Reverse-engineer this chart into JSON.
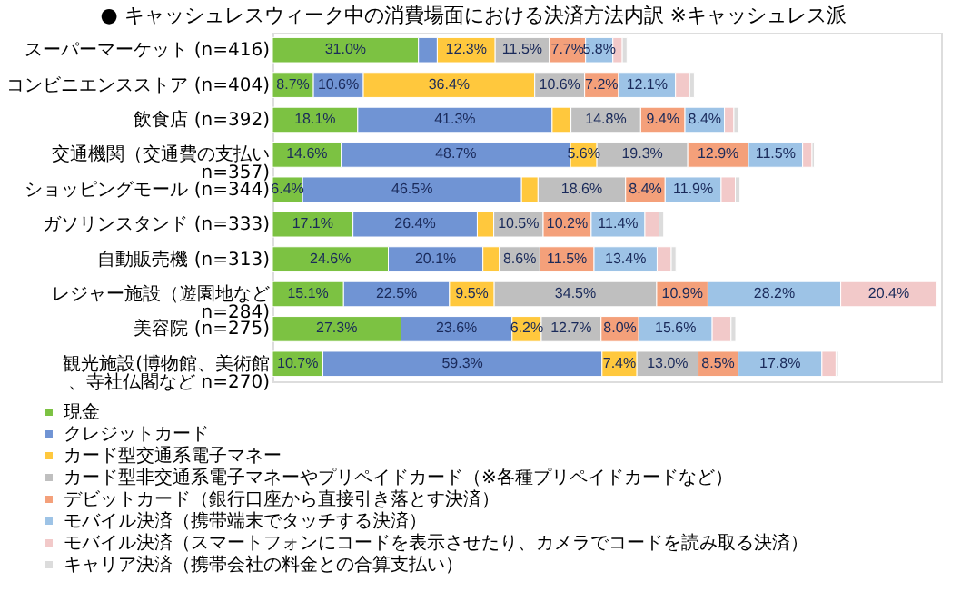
{
  "chart_data": {
    "type": "bar",
    "orientation": "horizontal",
    "stacked": true,
    "title": "● キャッシュレスウィーク中の消費場面における決済方法内訳 ※キャッシュレス派",
    "categories": [
      "スーパーマーケット (n=416)",
      "コンビニエンスストア (n=404)",
      "飲食店 (n=392)",
      "交通機関（交通費の支払い n=357)",
      "ショッピングモール (n=344)",
      "ガソリンスタンド (n=333)",
      "自動販売機 (n=313)",
      "レジャー施設（遊園地など n=284)",
      "美容院 (n=275)",
      "観光施設(博物館、美術館、寺社仏閣など n=270)"
    ],
    "xlim": [
      0,
      142
    ],
    "tick_labels": "y",
    "grid": false,
    "legend": "bottom",
    "series": [
      {
        "name": "現金",
        "color": "#7cc242",
        "values": [
          31.0,
          8.7,
          18.1,
          14.6,
          6.4,
          17.1,
          24.6,
          15.1,
          27.3,
          10.7
        ],
        "value_labels": [
          "31.0%",
          "8.7%",
          "18.1%",
          "14.6%",
          "6.4%",
          "17.1%",
          "24.6%",
          "15.1%",
          "27.3%",
          "10.7%"
        ]
      },
      {
        "name": "クレジットカード",
        "color": "#7094d4",
        "values": [
          4.0,
          10.6,
          41.3,
          48.7,
          46.5,
          26.4,
          20.1,
          22.5,
          23.6,
          59.3
        ],
        "value_labels": [
          null,
          "10.6%",
          "41.3%",
          "48.7%",
          "46.5%",
          "26.4%",
          "20.1%",
          "22.5%",
          "23.6%",
          "59.3%"
        ]
      },
      {
        "name": "カード型交通系電子マネー",
        "color": "#ffc83d",
        "values": [
          12.3,
          36.4,
          4.0,
          5.6,
          3.5,
          3.5,
          3.5,
          9.5,
          6.2,
          7.4
        ],
        "value_labels": [
          "12.3%",
          "36.4%",
          null,
          "5.6%",
          null,
          null,
          null,
          "9.5%",
          "6.2%",
          "7.4%"
        ]
      },
      {
        "name": "カード型非交通系電子マネーやプリペイドカード（※各種プリペイドカードなど）",
        "color": "#bfbfbf",
        "values": [
          11.5,
          10.6,
          14.8,
          19.3,
          18.6,
          10.5,
          8.6,
          34.5,
          12.7,
          13.0
        ],
        "value_labels": [
          "11.5%",
          "10.6%",
          "14.8%",
          "19.3%",
          "18.6%",
          "10.5%",
          "8.6%",
          "34.5%",
          "12.7%",
          "13.0%"
        ]
      },
      {
        "name": "デビットカード（銀行口座から直接引き落とす決済）",
        "color": "#f4a07a",
        "values": [
          7.7,
          7.2,
          9.4,
          12.9,
          8.4,
          10.2,
          11.5,
          10.9,
          8.0,
          8.5
        ],
        "value_labels": [
          "7.7%",
          "7.2%",
          "9.4%",
          "12.9%",
          "8.4%",
          "10.2%",
          "11.5%",
          "10.9%",
          "8.0%",
          "8.5%"
        ]
      },
      {
        "name": "モバイル決済（携帯端末でタッチする決済）",
        "color": "#9dc3e6",
        "values": [
          5.8,
          12.1,
          8.4,
          11.5,
          11.9,
          11.4,
          13.4,
          28.2,
          15.6,
          17.8
        ],
        "value_labels": [
          "5.8%",
          "12.1%",
          "8.4%",
          "11.5%",
          "11.9%",
          "11.4%",
          "13.4%",
          "28.2%",
          "15.6%",
          "17.8%"
        ]
      },
      {
        "name": "モバイル決済（スマートフォンにコードを表示させたり、カメラでコードを読み取る決済）",
        "color": "#f2c9c9",
        "values": [
          2.0,
          3.0,
          2.0,
          2.0,
          3.0,
          3.0,
          3.0,
          20.4,
          4.0,
          3.0
        ],
        "value_labels": [
          null,
          null,
          null,
          null,
          null,
          null,
          null,
          "20.4%",
          null,
          null
        ]
      },
      {
        "name": "キャリア決済（携帯会社の料金との合算支払い）",
        "color": "#dcdcdc",
        "values": [
          1.0,
          1.0,
          1.0,
          0.5,
          1.0,
          1.0,
          1.0,
          null,
          1.0,
          0.5
        ],
        "value_labels": [
          null,
          null,
          null,
          null,
          null,
          null,
          null,
          null,
          null,
          null
        ]
      }
    ]
  }
}
